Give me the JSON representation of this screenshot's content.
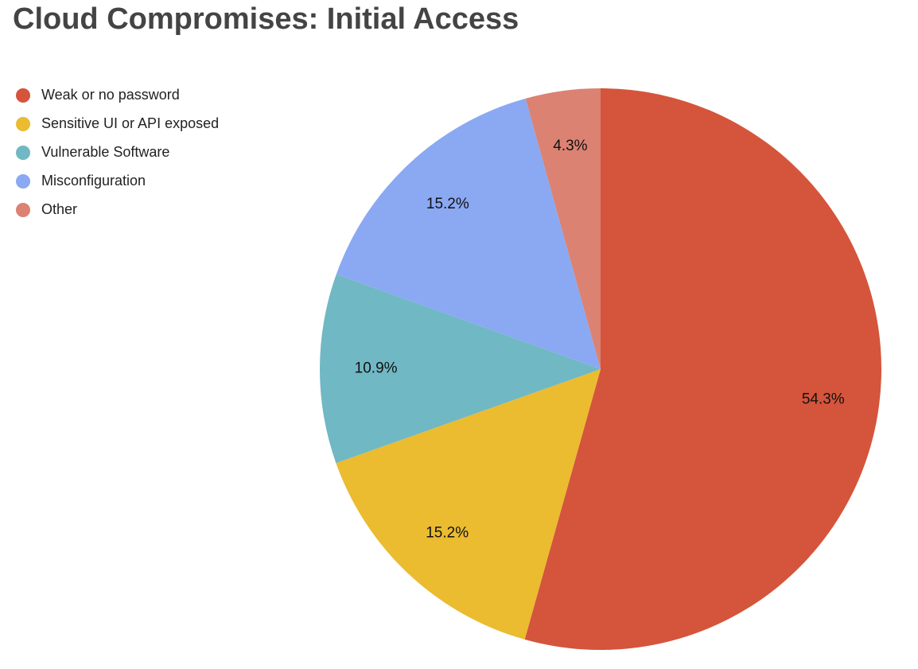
{
  "chart_data": {
    "type": "pie",
    "title": "Cloud Compromises: Initial Access",
    "categories": [
      "Weak or no password",
      "Sensitive UI or API exposed",
      "Vulnerable Software",
      "Misconfiguration",
      "Other"
    ],
    "values": [
      54.3,
      15.2,
      10.9,
      15.2,
      4.3
    ],
    "value_labels": [
      "54.3%",
      "15.2%",
      "10.9%",
      "15.2%",
      "4.3%"
    ],
    "colors": [
      "#d4553b",
      "#ebbb30",
      "#70b8c4",
      "#8aa9f2",
      "#db8273"
    ],
    "legend": "left"
  }
}
